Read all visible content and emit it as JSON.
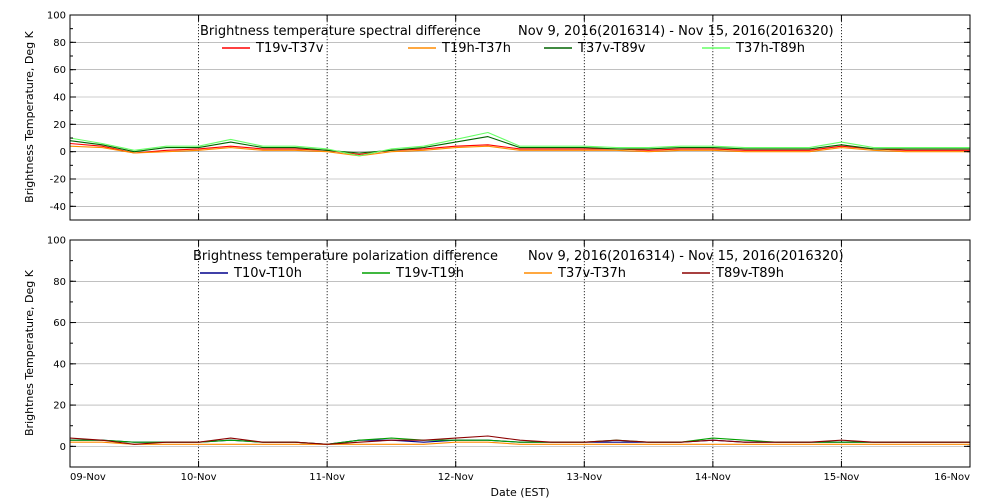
{
  "chart_data": [
    {
      "type": "line",
      "title": "Brightness temperature spectral difference",
      "date_range": "Nov  9, 2016(2016314) - Nov 15, 2016(2016320)",
      "ylabel": "Brightness Temperature, Deg K",
      "xlabel": "",
      "xlim": [
        "2016-11-09",
        "2016-11-16"
      ],
      "ylim": [
        -50,
        100
      ],
      "yticks": [
        -40,
        -20,
        0,
        20,
        40,
        60,
        80,
        100
      ],
      "xtick_labels": [
        "",
        "",
        "",
        "",
        "",
        "",
        "",
        ""
      ],
      "grid": "vertical dotted at day boundaries, horizontal at y ticks",
      "legend_placement": "top",
      "x_days": [
        0,
        0.25,
        0.5,
        0.75,
        1,
        1.25,
        1.5,
        1.75,
        2,
        2.25,
        2.5,
        2.75,
        3,
        3.25,
        3.5,
        3.75,
        4,
        4.25,
        4.5,
        4.75,
        5,
        5.25,
        5.5,
        5.75,
        6,
        6.25,
        6.5,
        6.75,
        7
      ],
      "series": [
        {
          "name": "T19v-T37v",
          "color": "#ff0000",
          "values": [
            6,
            4,
            -1,
            1,
            2,
            4,
            2,
            2,
            1,
            -2,
            1,
            2,
            4,
            5,
            2,
            2,
            2,
            2,
            1,
            2,
            2,
            1,
            1,
            1,
            4,
            2,
            1,
            1,
            1
          ]
        },
        {
          "name": "T19h-T37h",
          "color": "#ff8c00",
          "values": [
            4,
            3,
            -1,
            0,
            1,
            3,
            1,
            1,
            0,
            -3,
            0,
            1,
            3,
            4,
            1,
            1,
            1,
            1,
            0,
            1,
            1,
            0,
            0,
            0,
            3,
            1,
            0,
            0,
            0
          ]
        },
        {
          "name": "T37v-T89v",
          "color": "#006400",
          "values": [
            8,
            5,
            0,
            3,
            3,
            7,
            3,
            3,
            1,
            -1,
            1,
            3,
            7,
            11,
            3,
            3,
            3,
            2,
            2,
            3,
            3,
            2,
            2,
            2,
            5,
            2,
            2,
            2,
            2
          ]
        },
        {
          "name": "T37h-T89h",
          "color": "#66ff66",
          "values": [
            10,
            6,
            1,
            4,
            4,
            9,
            4,
            4,
            2,
            -3,
            2,
            4,
            9,
            14,
            4,
            4,
            4,
            3,
            3,
            4,
            4,
            3,
            3,
            3,
            7,
            3,
            3,
            3,
            3
          ]
        }
      ]
    },
    {
      "type": "line",
      "title": "Brightness temperature polarization difference",
      "date_range": "Nov  9, 2016(2016314) - Nov 15, 2016(2016320)",
      "ylabel": "Brightnes Temperature, Deg K",
      "xlabel": "Date (EST)",
      "xlim": [
        "2016-11-09",
        "2016-11-16"
      ],
      "ylim": [
        -10,
        100
      ],
      "yticks": [
        0,
        20,
        40,
        60,
        80,
        100
      ],
      "xtick_labels": [
        "09-Nov",
        "10-Nov",
        "11-Nov",
        "12-Nov",
        "13-Nov",
        "14-Nov",
        "15-Nov",
        "16-Nov"
      ],
      "grid": "vertical dotted at day boundaries, horizontal at y ticks",
      "legend_placement": "top",
      "x_days": [
        0,
        0.25,
        0.5,
        0.75,
        1,
        1.25,
        1.5,
        1.75,
        2,
        2.25,
        2.5,
        2.75,
        3,
        3.25,
        3.5,
        3.75,
        4,
        4.25,
        4.5,
        4.75,
        5,
        5.25,
        5.5,
        5.75,
        6,
        6.25,
        6.5,
        6.75,
        7
      ],
      "series": [
        {
          "name": "T10v-T10h",
          "color": "#00008b",
          "values": [
            3,
            3,
            2,
            2,
            2,
            3,
            2,
            2,
            1,
            3,
            3,
            2,
            3,
            3,
            2,
            2,
            2,
            2,
            2,
            2,
            3,
            2,
            2,
            2,
            2,
            2,
            2,
            2,
            2
          ]
        },
        {
          "name": "T19v-T19h",
          "color": "#00a000",
          "values": [
            3,
            3,
            2,
            2,
            2,
            3,
            2,
            2,
            1,
            3,
            4,
            3,
            3,
            3,
            2,
            2,
            2,
            3,
            2,
            2,
            4,
            3,
            2,
            2,
            2,
            2,
            2,
            2,
            2
          ]
        },
        {
          "name": "T37v-T37h",
          "color": "#ff8c00",
          "values": [
            2,
            2,
            1,
            1,
            1,
            1,
            1,
            1,
            1,
            1,
            1,
            1,
            2,
            2,
            1,
            1,
            1,
            1,
            1,
            1,
            1,
            1,
            1,
            1,
            1,
            1,
            1,
            1,
            1
          ]
        },
        {
          "name": "T89v-T89h",
          "color": "#8b0000",
          "values": [
            4,
            3,
            1,
            2,
            2,
            4,
            2,
            2,
            1,
            2,
            3,
            3,
            4,
            5,
            3,
            2,
            2,
            3,
            2,
            2,
            3,
            2,
            2,
            2,
            3,
            2,
            2,
            2,
            2
          ]
        }
      ]
    }
  ]
}
